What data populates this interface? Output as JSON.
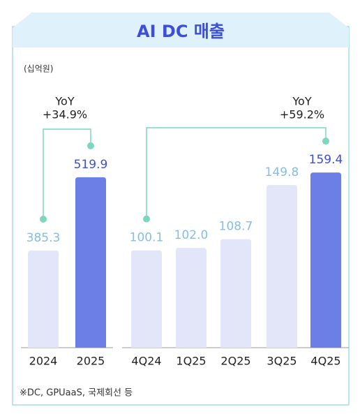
{
  "header": {
    "title": "AI DC 매출",
    "unit": "(십억원)"
  },
  "chart_data": [
    {
      "type": "bar",
      "categories": [
        "2024",
        "2025"
      ],
      "values": [
        385.3,
        519.9
      ],
      "colors": [
        "#e3e5f8",
        "#6b7fe6"
      ],
      "label_colors": [
        "#86bde3",
        "#3b4fd8"
      ],
      "ylim": [
        207,
        530
      ],
      "annotation": [
        "YoY",
        "+34.9%"
      ]
    },
    {
      "type": "bar",
      "categories": [
        "4Q24",
        "1Q25",
        "2Q25",
        "3Q25",
        "4Q25"
      ],
      "values": [
        100.1,
        102.0,
        108.7,
        149.8,
        159.4
      ],
      "value_labels": [
        "100.1",
        "102.0",
        "108.7",
        "149.8",
        "159.4"
      ],
      "colors": [
        "#e3e5f8",
        "#e3e5f8",
        "#e3e5f8",
        "#e3e5f8",
        "#6b7fe6"
      ],
      "label_colors": [
        "#86bde3",
        "#86bde3",
        "#86bde3",
        "#86bde3",
        "#3b4fd8"
      ],
      "ylim": [
        26,
        160
      ],
      "annotation": [
        "YoY",
        "+59.2%"
      ]
    }
  ],
  "footnote": "※DC, GPUaaS, 국제회선 등"
}
